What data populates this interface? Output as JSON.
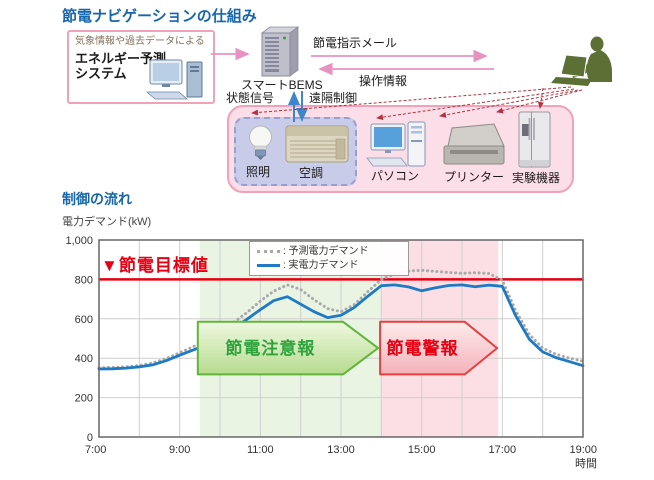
{
  "diagram": {
    "title": "節電ナビゲーションの仕組み",
    "prediction_box": {
      "subtitle": "気象情報や過去データによる",
      "title_line1": "エネルギー予測",
      "title_line2": "システム"
    },
    "bems_label": "スマートBEMS",
    "mail_label": "節電指示メール",
    "operation_label": "操作情報",
    "status_label": "状態信号",
    "remote_label": "遠隔制御",
    "devices": {
      "lighting": "照明",
      "aircon": "空調",
      "pc": "パソコン",
      "printer": "プリンター",
      "lab": "実験機器"
    }
  },
  "chart": {
    "title": "制御の流れ",
    "ylabel": "電力デマンド(kW)",
    "target_label": "▼節電目標値",
    "legend": {
      "predicted": ": 予測電力デマンド",
      "actual": ": 実電力デマンド"
    }
  },
  "chart_data": {
    "type": "line",
    "title": "制御の流れ",
    "ylabel": "電力デマンド(kW)",
    "xlabel": "時間",
    "x_range": [
      7,
      19
    ],
    "ylim": [
      0,
      1000
    ],
    "y_tick_values": [
      0,
      200,
      400,
      600,
      800,
      1000
    ],
    "y_ticks": [
      "0",
      "200",
      "400",
      "600",
      "800",
      "1,000"
    ],
    "y_grid_values": [
      200,
      400,
      600
    ],
    "x_tick_hours": [
      7,
      9,
      11,
      13,
      15,
      17,
      19
    ],
    "x_tick_labels": [
      "7:00",
      "9:00",
      "11:00",
      "13:00",
      "15:00",
      "17:00",
      "19:00"
    ],
    "grid": true,
    "legend_position": "top-center",
    "target_value": 800,
    "target_color": "#e60012",
    "target_label": "▼節電目標値",
    "bands": [
      {
        "label": "節電注意報",
        "from": 9.5,
        "to": 14.0,
        "color": "#eaf4e3"
      },
      {
        "label": "節電警報",
        "from": 14.0,
        "to": 16.9,
        "color": "#fbdfe4"
      }
    ],
    "banners": [
      {
        "label": "節電注意報",
        "body_from": 9.45,
        "body_to": 13.05,
        "tip": 13.92,
        "v_top": 585,
        "v_bottom": 318,
        "border": "#61b53a",
        "fill_top": "#eef8e0",
        "fill_bottom": "#b6dc8e",
        "text_color": "#2fa33c"
      },
      {
        "label": "節電警報",
        "body_from": 13.97,
        "body_to": 16.07,
        "tip": 16.87,
        "v_top": 585,
        "v_bottom": 318,
        "border": "#e54040",
        "fill_top": "#fdecec",
        "fill_bottom": "#f4b2ba",
        "text_color": "#e60012"
      }
    ],
    "series": [
      {
        "name": "予測電力デマンド",
        "style": "dotted",
        "color": "#a9a9a9",
        "x": [
          7,
          7.33,
          7.67,
          8,
          8.33,
          8.67,
          9,
          9.33,
          9.67,
          10,
          10.33,
          10.67,
          11,
          11.33,
          11.67,
          12,
          12.33,
          12.67,
          13,
          13.33,
          13.67,
          14,
          14.33,
          14.67,
          15,
          15.33,
          15.67,
          16,
          16.33,
          16.67,
          17,
          17.33,
          17.67,
          18,
          18.33,
          18.67,
          19
        ],
        "values": [
          352,
          353,
          356,
          363,
          376,
          398,
          428,
          458,
          492,
          533,
          580,
          632,
          690,
          740,
          772,
          748,
          697,
          652,
          636,
          672,
          738,
          800,
          828,
          842,
          846,
          841,
          835,
          831,
          834,
          830,
          796,
          642,
          520,
          452,
          420,
          400,
          385
        ]
      },
      {
        "name": "実電力デマンド",
        "style": "solid",
        "color": "#1e7ac4",
        "x": [
          7,
          7.33,
          7.67,
          8,
          8.33,
          8.67,
          9,
          9.33,
          9.67,
          10,
          10.33,
          10.67,
          11,
          11.33,
          11.67,
          12,
          12.33,
          12.67,
          13,
          13.33,
          13.67,
          14,
          14.33,
          14.67,
          15,
          15.33,
          15.67,
          16,
          16.33,
          16.67,
          17,
          17.33,
          17.67,
          18,
          18.33,
          18.67,
          19
        ],
        "values": [
          345,
          346,
          350,
          356,
          366,
          388,
          415,
          441,
          468,
          505,
          550,
          598,
          646,
          692,
          712,
          674,
          636,
          606,
          618,
          658,
          715,
          768,
          772,
          762,
          742,
          757,
          769,
          772,
          763,
          771,
          765,
          616,
          496,
          432,
          403,
          382,
          362
        ]
      }
    ]
  }
}
